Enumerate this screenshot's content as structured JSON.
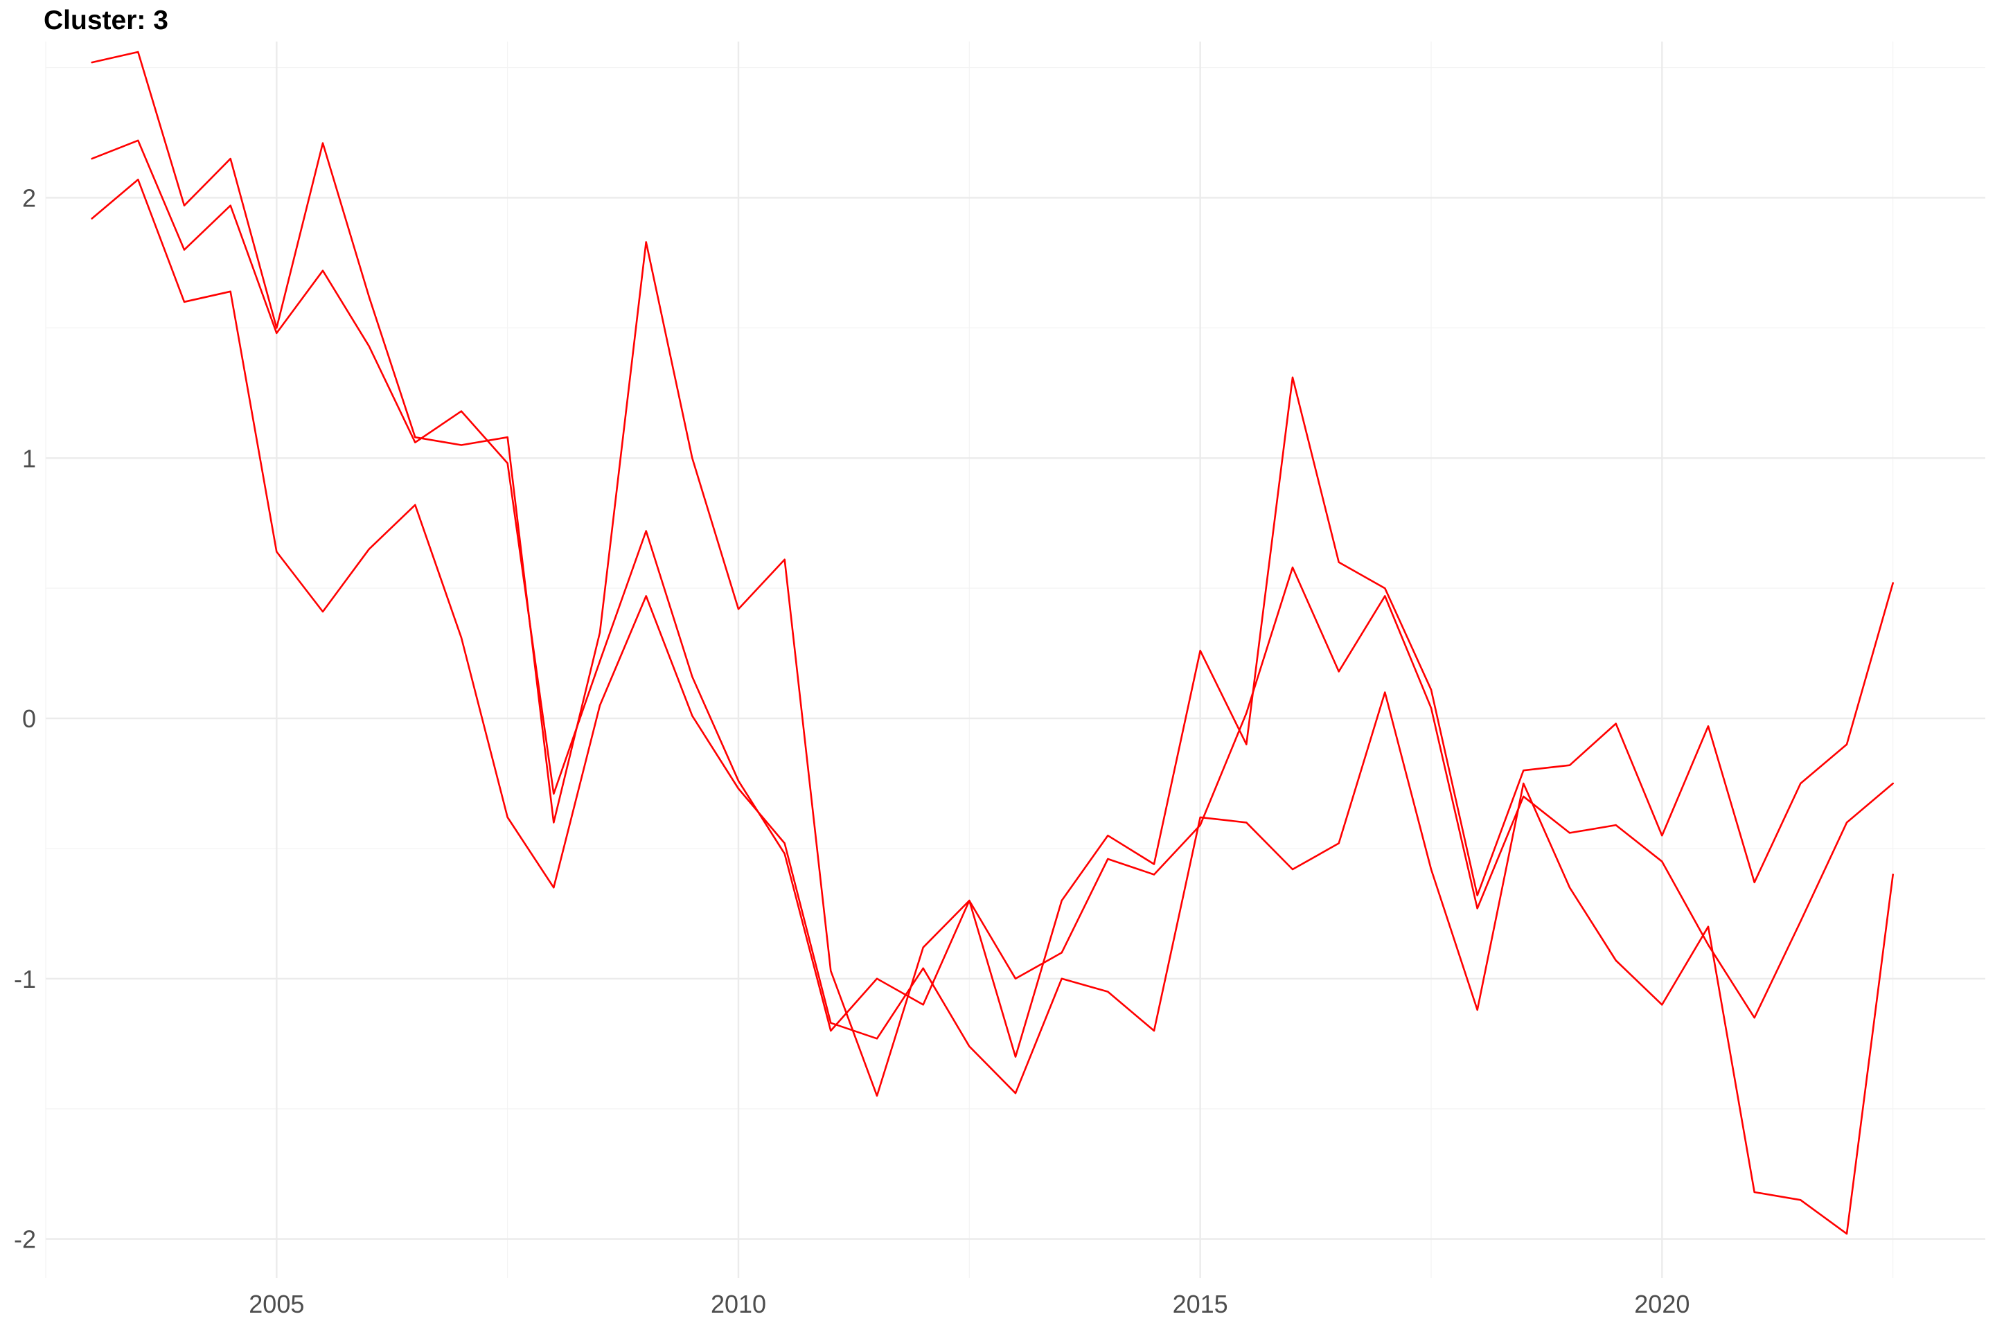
{
  "chart_data": {
    "type": "line",
    "title": "Cluster: 3",
    "xlabel": "",
    "ylabel": "",
    "xlim": [
      2002.5,
      2023.5
    ],
    "ylim": [
      -2.15,
      2.6
    ],
    "x_ticks": [
      2005,
      2010,
      2015,
      2020
    ],
    "x_tick_labels": [
      "2005",
      "2010",
      "2015",
      "2020"
    ],
    "y_ticks": [
      -2,
      -1,
      0,
      1,
      2
    ],
    "y_tick_labels": [
      "-2",
      "-1",
      "0",
      "1",
      "2"
    ],
    "grid": true,
    "legend": "none",
    "line_color": "#ff0000",
    "series": [
      {
        "x": [
          2003.0,
          2003.5,
          2004.0,
          2004.5,
          2005.0,
          2005.5,
          2006.0,
          2006.5,
          2007.0,
          2007.5,
          2008.0,
          2008.5,
          2009.0,
          2009.5,
          2010.0,
          2010.5,
          2011.0,
          2011.5,
          2012.0,
          2012.5,
          2013.0,
          2013.5,
          2014.0,
          2014.5,
          2015.0,
          2015.5,
          2016.0,
          2016.5,
          2017.0,
          2017.5,
          2018.0,
          2018.5,
          2019.0,
          2019.5,
          2020.0,
          2020.5,
          2021.0,
          2021.5,
          2022.0,
          2022.5
        ],
        "y": [
          2.52,
          2.56,
          1.97,
          2.15,
          1.5,
          2.21,
          1.62,
          1.08,
          1.05,
          1.08,
          -0.4,
          0.33,
          1.83,
          1.0,
          0.42,
          0.61,
          -0.97,
          -1.45,
          -0.88,
          -0.7,
          -1.3,
          -0.7,
          -0.45,
          -0.56,
          0.26,
          -0.1,
          1.31,
          0.6,
          0.5,
          0.11,
          -0.68,
          -0.2,
          -0.18,
          -0.02,
          -0.45,
          -0.03,
          -0.63,
          -0.25,
          -0.1,
          0.52
        ]
      },
      {
        "x": [
          2003.0,
          2003.5,
          2004.0,
          2004.5,
          2005.0,
          2005.5,
          2006.0,
          2006.5,
          2007.0,
          2007.5,
          2008.0,
          2008.5,
          2009.0,
          2009.5,
          2010.0,
          2010.5,
          2011.0,
          2011.5,
          2012.0,
          2012.5,
          2013.0,
          2013.5,
          2014.0,
          2014.5,
          2015.0,
          2015.5,
          2016.0,
          2016.5,
          2017.0,
          2017.5,
          2018.0,
          2018.5,
          2019.0,
          2019.5,
          2020.0,
          2020.5,
          2021.0,
          2021.5,
          2022.0,
          2022.5
        ],
        "y": [
          2.15,
          2.22,
          1.8,
          1.97,
          1.48,
          1.72,
          1.43,
          1.06,
          1.18,
          0.98,
          -0.29,
          0.22,
          0.72,
          0.16,
          -0.24,
          -0.52,
          -1.2,
          -1.0,
          -1.1,
          -0.7,
          -1.0,
          -0.9,
          -0.54,
          -0.6,
          -0.41,
          0.02,
          0.58,
          0.18,
          0.47,
          0.04,
          -0.73,
          -0.3,
          -0.44,
          -0.41,
          -0.55,
          -0.87,
          -1.15,
          -0.78,
          -0.4,
          -0.25
        ]
      },
      {
        "x": [
          2003.0,
          2003.5,
          2004.0,
          2004.5,
          2005.0,
          2005.5,
          2006.0,
          2006.5,
          2007.0,
          2007.5,
          2008.0,
          2008.5,
          2009.0,
          2009.5,
          2010.0,
          2010.5,
          2011.0,
          2011.5,
          2012.0,
          2012.5,
          2013.0,
          2013.5,
          2014.0,
          2014.5,
          2015.0,
          2015.5,
          2016.0,
          2016.5,
          2017.0,
          2017.5,
          2018.0,
          2018.5,
          2019.0,
          2019.5,
          2020.0,
          2020.5,
          2021.0,
          2021.5,
          2022.0,
          2022.5
        ],
        "y": [
          1.92,
          2.07,
          1.6,
          1.64,
          0.64,
          0.41,
          0.65,
          0.82,
          0.31,
          -0.38,
          -0.65,
          0.05,
          0.47,
          0.01,
          -0.27,
          -0.48,
          -1.17,
          -1.23,
          -0.96,
          -1.26,
          -1.44,
          -1.0,
          -1.05,
          -1.2,
          -0.38,
          -0.4,
          -0.58,
          -0.48,
          0.1,
          -0.58,
          -1.12,
          -0.25,
          -0.65,
          -0.93,
          -1.1,
          -0.8,
          -1.82,
          -1.85,
          -1.98,
          -0.6
        ]
      }
    ]
  }
}
